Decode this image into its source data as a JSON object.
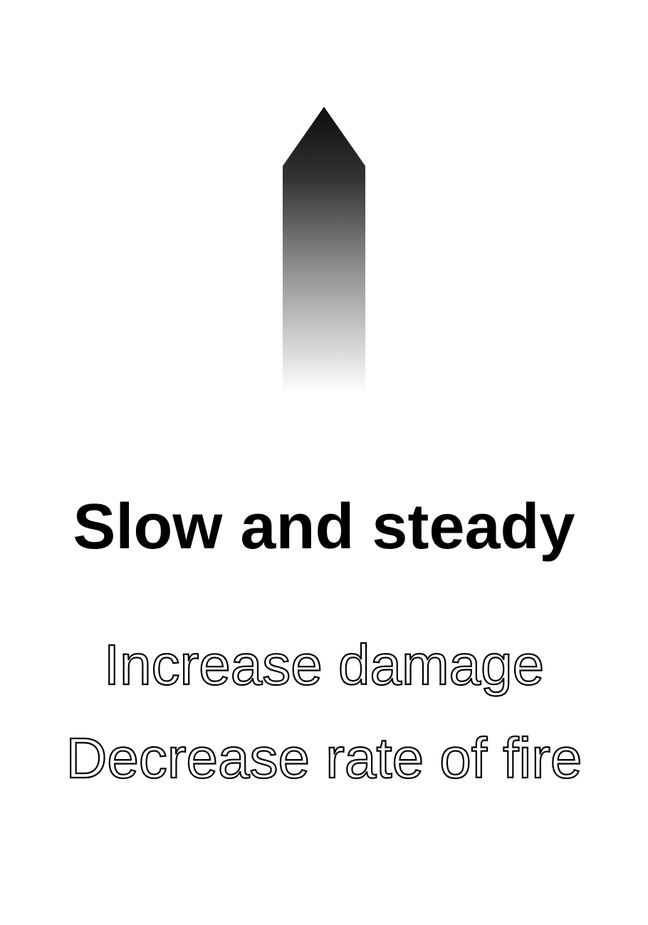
{
  "card": {
    "title": "Slow and steady",
    "effects": [
      "Increase damage",
      "Decrease rate of fire"
    ]
  }
}
